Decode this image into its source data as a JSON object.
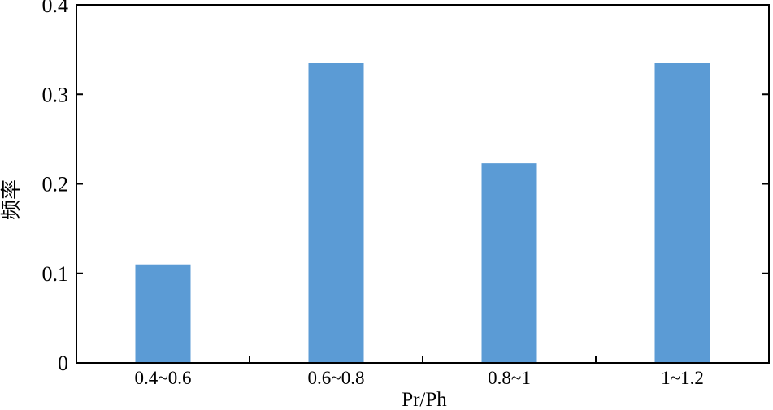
{
  "chart_data": {
    "type": "bar",
    "categories": [
      "0.4~0.6",
      "0.6~0.8",
      "0.8~1",
      "1~1.2"
    ],
    "values": [
      0.11,
      0.335,
      0.223,
      0.335
    ],
    "xlabel": "Pr/Ph",
    "ylabel": "频率",
    "ylim": [
      0,
      0.4
    ],
    "yticks": [
      0,
      0.1,
      0.2,
      0.3,
      0.4
    ],
    "ytick_labels": [
      "0",
      "0.1",
      "0.2",
      "0.3",
      "0.4"
    ],
    "bar_color": "#5b9bd5",
    "grid": false,
    "legend": "none"
  }
}
